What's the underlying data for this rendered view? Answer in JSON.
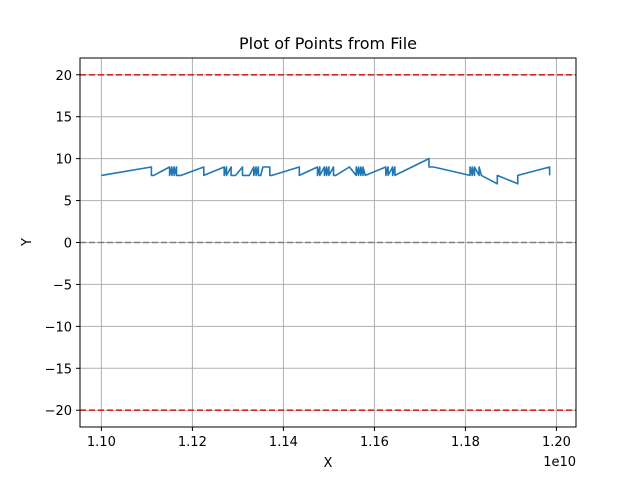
{
  "chart_data": {
    "type": "line",
    "title": "Plot of Points from File",
    "xlabel": "X",
    "ylabel": "Y",
    "x_offset_text": "1e10",
    "xlim": [
      1.0953,
      1.2043
    ],
    "ylim": [
      -22,
      22
    ],
    "xticks": [
      1.1,
      1.12,
      1.14,
      1.16,
      1.18,
      1.2
    ],
    "xtick_labels": [
      "1.10",
      "1.12",
      "1.14",
      "1.16",
      "1.18",
      "1.20"
    ],
    "yticks": [
      -20,
      -15,
      -10,
      -5,
      0,
      5,
      10,
      15,
      20
    ],
    "ytick_labels": [
      "−20",
      "−15",
      "−10",
      "−5",
      "0",
      "5",
      "10",
      "15",
      "20"
    ],
    "grid": true,
    "reference_lines": [
      {
        "y": 20,
        "color": "#d62728",
        "style": "dashed"
      },
      {
        "y": 0,
        "color": "#7f7f7f",
        "style": "dashed"
      },
      {
        "y": -20,
        "color": "#d62728",
        "style": "dashed"
      }
    ],
    "series": [
      {
        "color": "#1f77b4",
        "x": [
          1.1,
          1.111,
          1.111,
          1.1115,
          1.115,
          1.115,
          1.1155,
          1.1155,
          1.116,
          1.116,
          1.1165,
          1.1165,
          1.1175,
          1.1225,
          1.1225,
          1.127,
          1.127,
          1.1275,
          1.1275,
          1.1285,
          1.1285,
          1.1295,
          1.131,
          1.131,
          1.1325,
          1.1335,
          1.1335,
          1.134,
          1.134,
          1.1345,
          1.1345,
          1.135,
          1.1355,
          1.137,
          1.137,
          1.1375,
          1.1435,
          1.1435,
          1.1475,
          1.1475,
          1.148,
          1.148,
          1.149,
          1.149,
          1.1495,
          1.1495,
          1.15,
          1.15,
          1.151,
          1.151,
          1.1515,
          1.1545,
          1.156,
          1.156,
          1.1565,
          1.1565,
          1.157,
          1.157,
          1.1575,
          1.1575,
          1.158,
          1.1625,
          1.1625,
          1.163,
          1.163,
          1.164,
          1.164,
          1.1645,
          1.1645,
          1.172,
          1.172,
          1.173,
          1.181,
          1.181,
          1.1815,
          1.1815,
          1.182,
          1.182,
          1.183,
          1.183,
          1.1835,
          1.187,
          1.187,
          1.1915,
          1.1915,
          1.1985,
          1.1985
        ],
        "y": [
          8.0,
          9.0,
          8.0,
          8.0,
          9.0,
          8.0,
          9.0,
          8.0,
          9.0,
          8.0,
          9.0,
          8.0,
          8.0,
          9.0,
          8.0,
          9.0,
          8.0,
          9.0,
          8.0,
          9.0,
          8.0,
          8.0,
          9.0,
          8.0,
          8.0,
          9.0,
          8.0,
          9.0,
          8.0,
          9.0,
          8.0,
          8.0,
          9.0,
          9.0,
          8.0,
          8.0,
          9.0,
          8.0,
          9.0,
          8.0,
          9.0,
          8.0,
          9.0,
          8.0,
          9.0,
          8.0,
          9.0,
          8.0,
          9.0,
          8.0,
          8.0,
          9.0,
          8.0,
          9.0,
          8.0,
          9.0,
          8.0,
          9.0,
          8.0,
          9.0,
          8.0,
          9.0,
          8.0,
          9.0,
          8.0,
          9.0,
          8.0,
          9.0,
          8.0,
          10.0,
          9.0,
          9.0,
          8.0,
          9.0,
          8.0,
          9.0,
          8.0,
          9.0,
          8.0,
          9.0,
          8.0,
          7.0,
          8.0,
          7.0,
          8.0,
          9.0,
          8.0
        ]
      }
    ]
  }
}
